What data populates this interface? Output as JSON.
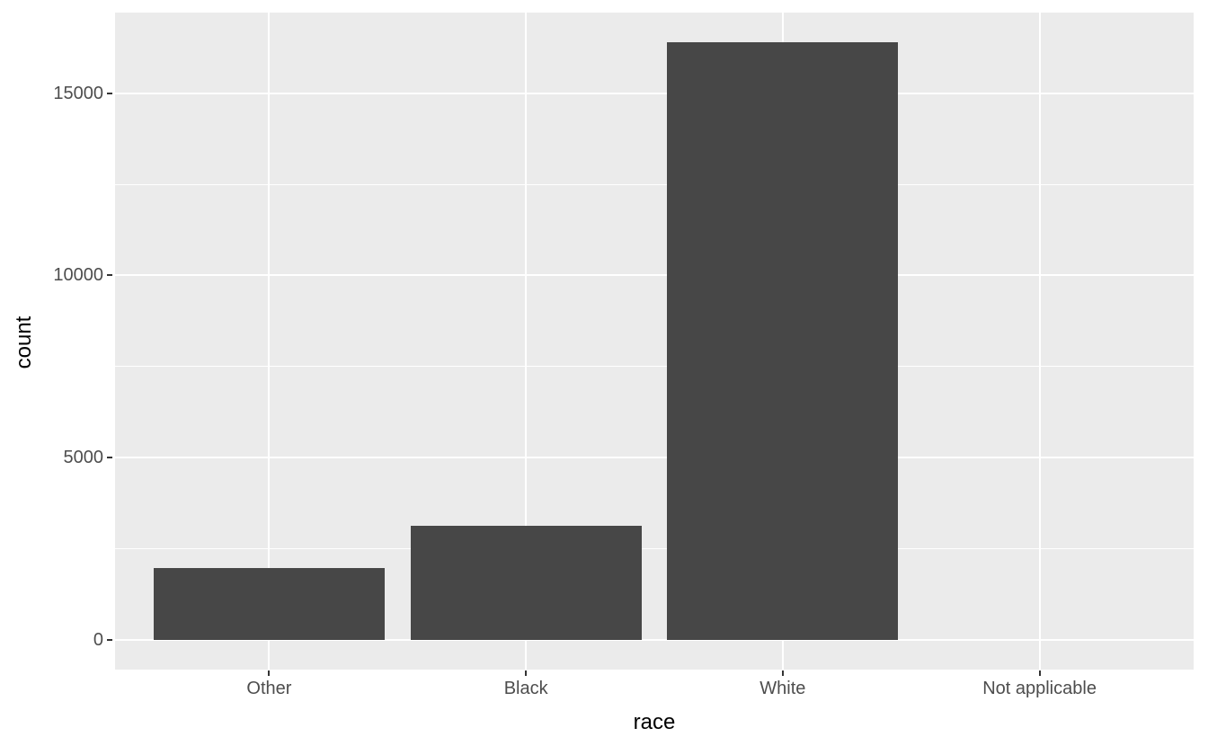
{
  "chart_data": {
    "type": "bar",
    "title": "",
    "xlabel": "race",
    "ylabel": "count",
    "categories": [
      "Other",
      "Black",
      "White",
      "Not applicable"
    ],
    "values": [
      1959,
      3129,
      16395,
      0
    ],
    "y_major_ticks": [
      0,
      5000,
      10000,
      15000
    ],
    "y_tick_labels": [
      "0",
      "5000",
      "10000",
      "15000"
    ],
    "y_minor_ticks": [
      2500,
      7500,
      12500
    ],
    "ylim": [
      0,
      17215
    ],
    "grid": "on",
    "legend": "none",
    "theme": "ggplot2-grey",
    "colors": {
      "bar_fill": "#474747",
      "panel_background": "#EBEBEB",
      "gridline": "#FFFFFF",
      "tick_mark": "#333333",
      "axis_text": "#4D4D4D",
      "axis_title": "#000000",
      "figure_background": "#FFFFFF"
    }
  }
}
